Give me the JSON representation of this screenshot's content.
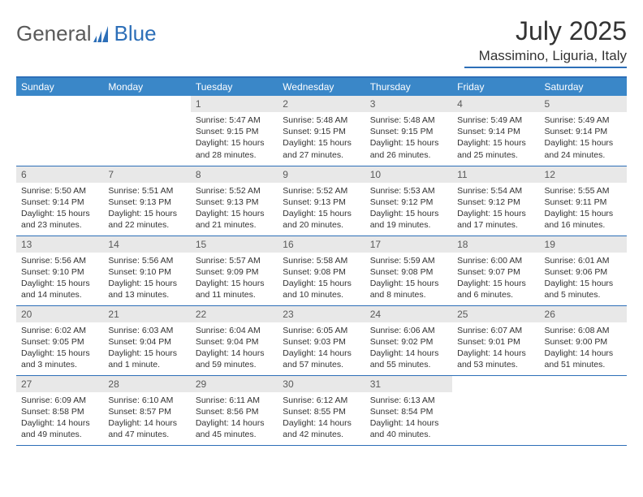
{
  "brand": {
    "part1": "General",
    "part2": "Blue"
  },
  "title": "July 2025",
  "location": "Massimino, Liguria, Italy",
  "colors": {
    "header_bg": "#3a87c8",
    "rule": "#2d6fb8",
    "daynum_bg": "#e8e8e8",
    "text": "#333333",
    "logo_gray": "#5a5a5a",
    "logo_blue": "#2d6fb8"
  },
  "weekdays": [
    "Sunday",
    "Monday",
    "Tuesday",
    "Wednesday",
    "Thursday",
    "Friday",
    "Saturday"
  ],
  "weeks": [
    [
      null,
      null,
      {
        "n": "1",
        "sr": "5:47 AM",
        "ss": "9:15 PM",
        "dl": "15 hours and 28 minutes."
      },
      {
        "n": "2",
        "sr": "5:48 AM",
        "ss": "9:15 PM",
        "dl": "15 hours and 27 minutes."
      },
      {
        "n": "3",
        "sr": "5:48 AM",
        "ss": "9:15 PM",
        "dl": "15 hours and 26 minutes."
      },
      {
        "n": "4",
        "sr": "5:49 AM",
        "ss": "9:14 PM",
        "dl": "15 hours and 25 minutes."
      },
      {
        "n": "5",
        "sr": "5:49 AM",
        "ss": "9:14 PM",
        "dl": "15 hours and 24 minutes."
      }
    ],
    [
      {
        "n": "6",
        "sr": "5:50 AM",
        "ss": "9:14 PM",
        "dl": "15 hours and 23 minutes."
      },
      {
        "n": "7",
        "sr": "5:51 AM",
        "ss": "9:13 PM",
        "dl": "15 hours and 22 minutes."
      },
      {
        "n": "8",
        "sr": "5:52 AM",
        "ss": "9:13 PM",
        "dl": "15 hours and 21 minutes."
      },
      {
        "n": "9",
        "sr": "5:52 AM",
        "ss": "9:13 PM",
        "dl": "15 hours and 20 minutes."
      },
      {
        "n": "10",
        "sr": "5:53 AM",
        "ss": "9:12 PM",
        "dl": "15 hours and 19 minutes."
      },
      {
        "n": "11",
        "sr": "5:54 AM",
        "ss": "9:12 PM",
        "dl": "15 hours and 17 minutes."
      },
      {
        "n": "12",
        "sr": "5:55 AM",
        "ss": "9:11 PM",
        "dl": "15 hours and 16 minutes."
      }
    ],
    [
      {
        "n": "13",
        "sr": "5:56 AM",
        "ss": "9:10 PM",
        "dl": "15 hours and 14 minutes."
      },
      {
        "n": "14",
        "sr": "5:56 AM",
        "ss": "9:10 PM",
        "dl": "15 hours and 13 minutes."
      },
      {
        "n": "15",
        "sr": "5:57 AM",
        "ss": "9:09 PM",
        "dl": "15 hours and 11 minutes."
      },
      {
        "n": "16",
        "sr": "5:58 AM",
        "ss": "9:08 PM",
        "dl": "15 hours and 10 minutes."
      },
      {
        "n": "17",
        "sr": "5:59 AM",
        "ss": "9:08 PM",
        "dl": "15 hours and 8 minutes."
      },
      {
        "n": "18",
        "sr": "6:00 AM",
        "ss": "9:07 PM",
        "dl": "15 hours and 6 minutes."
      },
      {
        "n": "19",
        "sr": "6:01 AM",
        "ss": "9:06 PM",
        "dl": "15 hours and 5 minutes."
      }
    ],
    [
      {
        "n": "20",
        "sr": "6:02 AM",
        "ss": "9:05 PM",
        "dl": "15 hours and 3 minutes."
      },
      {
        "n": "21",
        "sr": "6:03 AM",
        "ss": "9:04 PM",
        "dl": "15 hours and 1 minute."
      },
      {
        "n": "22",
        "sr": "6:04 AM",
        "ss": "9:04 PM",
        "dl": "14 hours and 59 minutes."
      },
      {
        "n": "23",
        "sr": "6:05 AM",
        "ss": "9:03 PM",
        "dl": "14 hours and 57 minutes."
      },
      {
        "n": "24",
        "sr": "6:06 AM",
        "ss": "9:02 PM",
        "dl": "14 hours and 55 minutes."
      },
      {
        "n": "25",
        "sr": "6:07 AM",
        "ss": "9:01 PM",
        "dl": "14 hours and 53 minutes."
      },
      {
        "n": "26",
        "sr": "6:08 AM",
        "ss": "9:00 PM",
        "dl": "14 hours and 51 minutes."
      }
    ],
    [
      {
        "n": "27",
        "sr": "6:09 AM",
        "ss": "8:58 PM",
        "dl": "14 hours and 49 minutes."
      },
      {
        "n": "28",
        "sr": "6:10 AM",
        "ss": "8:57 PM",
        "dl": "14 hours and 47 minutes."
      },
      {
        "n": "29",
        "sr": "6:11 AM",
        "ss": "8:56 PM",
        "dl": "14 hours and 45 minutes."
      },
      {
        "n": "30",
        "sr": "6:12 AM",
        "ss": "8:55 PM",
        "dl": "14 hours and 42 minutes."
      },
      {
        "n": "31",
        "sr": "6:13 AM",
        "ss": "8:54 PM",
        "dl": "14 hours and 40 minutes."
      },
      null,
      null
    ]
  ],
  "labels": {
    "sunrise": "Sunrise:",
    "sunset": "Sunset:",
    "daylight": "Daylight:"
  }
}
